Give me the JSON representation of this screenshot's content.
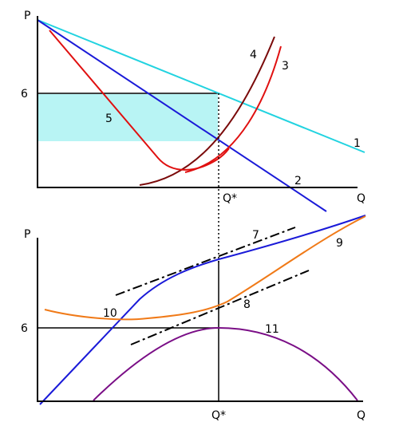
{
  "upper_panel": {
    "y_axis_label": "P",
    "x_axis_label": "Q",
    "price_tick": "6",
    "quantity_tick": "Q*",
    "curve_labels": {
      "c1": "1",
      "c2": "2",
      "c3": "3",
      "c4": "4",
      "c5": "5"
    }
  },
  "lower_panel": {
    "y_axis_label": "P",
    "x_axis_label": "Q",
    "price_tick": "6",
    "quantity_tick": "Q*",
    "curve_labels": {
      "c7": "7",
      "c8": "8",
      "c9": "9",
      "c10": "10",
      "c11": "11"
    }
  },
  "colors": {
    "cyan": "#22d3e0",
    "blue": "#1a1ad8",
    "red": "#e01010",
    "dark_red": "#7a0a0a",
    "orange": "#f07a18",
    "purple": "#7a0e86",
    "shade": "#b8f4f4",
    "dash": "#000000"
  }
}
